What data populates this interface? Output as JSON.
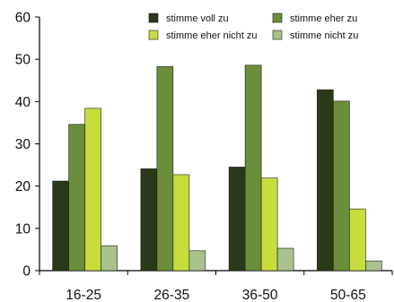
{
  "chart_data": {
    "type": "bar",
    "categories": [
      "16-25",
      "26-35",
      "36-50",
      "50-65"
    ],
    "series": [
      {
        "name": "stimme voll zu",
        "color": "#2a3a18",
        "values": [
          21.2,
          24.1,
          24.5,
          42.8
        ]
      },
      {
        "name": "stimme eher zu",
        "color": "#6b8e3a",
        "values": [
          34.6,
          48.3,
          48.6,
          40.1
        ]
      },
      {
        "name": "stimme eher nicht zu",
        "color": "#c8dc3c",
        "values": [
          38.4,
          22.7,
          21.9,
          14.6
        ]
      },
      {
        "name": "stimme nicht zu",
        "color": "#a9c28c",
        "values": [
          5.9,
          4.7,
          5.3,
          2.3
        ]
      }
    ],
    "y_ticks": [
      0,
      10,
      20,
      30,
      40,
      50,
      60
    ],
    "ylim": [
      0,
      60
    ],
    "grid": false,
    "legend_position": "top-right",
    "title": "",
    "xlabel": "",
    "ylabel": ""
  }
}
